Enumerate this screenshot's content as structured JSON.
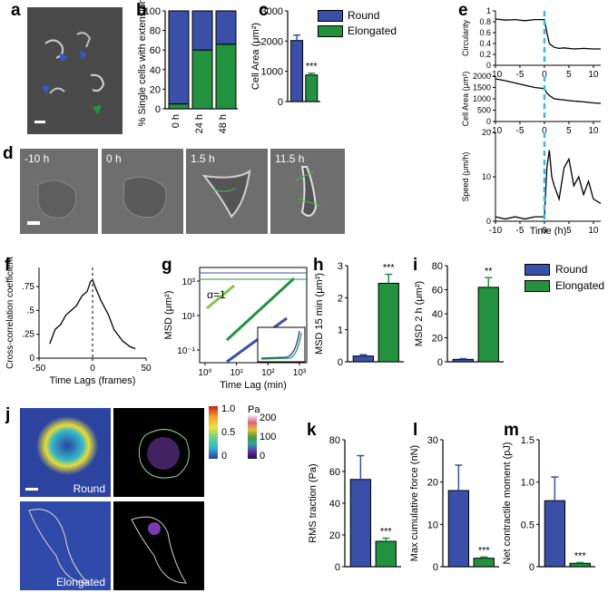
{
  "figure": {
    "panel_letters": [
      "a",
      "b",
      "c",
      "d",
      "e",
      "f",
      "g",
      "h",
      "i",
      "j",
      "k",
      "l",
      "m"
    ],
    "colors": {
      "round": "#3a4fa8",
      "elongated": "#23923f",
      "cyan": "#3cb7e6",
      "black": "#000000"
    }
  },
  "panel_d": {
    "time_labels": [
      "-10 h",
      "0 h",
      "1.5 h",
      "11.5 h"
    ]
  },
  "panel_j": {
    "row_labels": [
      "Round",
      "Elongated"
    ],
    "colorbar1_ticks": [
      "1.0",
      "0.5",
      "0"
    ],
    "colorbar2_title": "Pa",
    "colorbar2_ticks": [
      "200",
      "100",
      "0"
    ]
  },
  "legends": {
    "panel_c": [
      "Round",
      "Elongated"
    ],
    "panel_hi": [
      "Round",
      "Elongated"
    ]
  },
  "chart_data": [
    {
      "id": "b",
      "type": "bar",
      "stacked": true,
      "categories": [
        "0 h",
        "24 h",
        "48 h"
      ],
      "series": [
        {
          "name": "Elongated",
          "values": [
            5,
            60,
            66
          ]
        },
        {
          "name": "Round",
          "values": [
            95,
            40,
            34
          ]
        }
      ],
      "ylabel": "% Single cells with extensions",
      "ylim": [
        0,
        100
      ],
      "yticks": [
        "0",
        "20",
        "40",
        "60",
        "80",
        "100"
      ]
    },
    {
      "id": "c",
      "type": "bar",
      "categories": [
        "Round",
        "Elongated"
      ],
      "values": [
        2020,
        880
      ],
      "errors": [
        180,
        60
      ],
      "ylabel": "Cell Area (μm²)",
      "ylim": [
        0,
        3000
      ],
      "yticks": [
        "0",
        "1000",
        "2000",
        "3000"
      ],
      "annotation": "***"
    },
    {
      "id": "e1",
      "type": "line",
      "ylabel": "Circularity",
      "ylim": [
        0,
        1
      ],
      "yticks": [
        "0",
        "0.2",
        "0.4",
        "0.6",
        "0.8",
        "1"
      ],
      "xlim": [
        -10,
        11.5
      ],
      "xticks": [
        "-10",
        "-5",
        "0",
        "5",
        "10"
      ],
      "x": [
        -10,
        -8,
        -6,
        -4,
        -2,
        0,
        0.5,
        1,
        2,
        3,
        4,
        6,
        8,
        10,
        11.5
      ],
      "values": [
        0.85,
        0.83,
        0.84,
        0.82,
        0.84,
        0.84,
        0.6,
        0.4,
        0.33,
        0.31,
        0.32,
        0.3,
        0.31,
        0.3,
        0.3
      ]
    },
    {
      "id": "e2",
      "type": "line",
      "ylabel": "Cell Area (μm²)",
      "ylim": [
        0,
        2000
      ],
      "yticks": [
        "0",
        "500",
        "1000",
        "1500",
        "2000"
      ],
      "xlim": [
        -10,
        11.5
      ],
      "xticks": [
        "-10",
        "-5",
        "0",
        "5",
        "10"
      ],
      "x": [
        -10,
        -8,
        -6,
        -4,
        -2,
        0,
        0.5,
        1,
        2,
        4,
        6,
        8,
        10,
        11.5
      ],
      "values": [
        1880,
        1800,
        1700,
        1600,
        1500,
        1450,
        1250,
        1150,
        1000,
        950,
        900,
        870,
        820,
        800
      ]
    },
    {
      "id": "e3",
      "type": "line",
      "ylabel": "Speed (μm/h)",
      "ylim": [
        0,
        20
      ],
      "yticks": [
        "0",
        "10",
        "20"
      ],
      "xlim": [
        -10,
        11.5
      ],
      "xticks": [
        "-10",
        "-5",
        "0",
        "5",
        "10"
      ],
      "xlabel": "Time (h)",
      "x": [
        -10,
        -8,
        -6,
        -4,
        -2,
        0,
        0.5,
        1,
        1.5,
        2,
        3,
        4,
        5,
        6,
        7,
        8,
        9,
        10,
        11.5
      ],
      "values": [
        1,
        0.5,
        1,
        0.5,
        1,
        1,
        12,
        16,
        10,
        8,
        5,
        12,
        14,
        8,
        10,
        6,
        9,
        5,
        4
      ]
    },
    {
      "id": "f",
      "type": "line",
      "ylabel": "Cross-correlation coefficient",
      "xlabel": "Time Lags (frames)",
      "xlim": [
        -50,
        50
      ],
      "xticks": [
        "-50",
        "0",
        "50"
      ],
      "ylim": [
        0,
        0.95
      ],
      "yticks": [
        "0",
        ".25",
        ".5",
        ".75"
      ],
      "x": [
        -40,
        -35,
        -30,
        -25,
        -20,
        -15,
        -10,
        -5,
        -2,
        0,
        3,
        8,
        15,
        20,
        28,
        35,
        40
      ],
      "values": [
        0.15,
        0.3,
        0.35,
        0.45,
        0.5,
        0.55,
        0.65,
        0.7,
        0.8,
        0.82,
        0.73,
        0.6,
        0.45,
        0.3,
        0.18,
        0.12,
        0.1
      ]
    },
    {
      "id": "g",
      "type": "line",
      "log_axes": true,
      "ylabel": "MSD (μm²)",
      "xlabel": "Time Lag (min)",
      "xticks": [
        "10⁰",
        "10¹",
        "10²",
        "10³"
      ],
      "yticks": [
        "10⁻¹",
        "10¹",
        "10³"
      ],
      "annotation": "α=1",
      "series": [
        {
          "name": "Round",
          "values_note": "low slope"
        },
        {
          "name": "Elongated",
          "values_note": "high slope"
        }
      ]
    },
    {
      "id": "h",
      "type": "bar",
      "categories": [
        "Round",
        "Elongated"
      ],
      "values": [
        0.18,
        2.45
      ],
      "errors": [
        0.04,
        0.28
      ],
      "ylabel": "MSD 15 min (μm²)",
      "ylim": [
        0,
        3
      ],
      "yticks": [
        "0",
        "1",
        "2",
        "3"
      ],
      "annotation": "***"
    },
    {
      "id": "i",
      "type": "bar",
      "categories": [
        "Round",
        "Elongated"
      ],
      "values": [
        2,
        62
      ],
      "errors": [
        0.6,
        8
      ],
      "ylabel": "MSD 2 h (μm²)",
      "ylim": [
        0,
        80
      ],
      "yticks": [
        "0",
        "20",
        "40",
        "60",
        "80"
      ],
      "annotation": "**"
    },
    {
      "id": "k",
      "type": "bar",
      "categories": [
        "Round",
        "Elongated"
      ],
      "values": [
        55,
        16
      ],
      "errors": [
        15,
        2
      ],
      "ylabel": "RMS traction (Pa)",
      "ylim": [
        0,
        80
      ],
      "yticks": [
        "0",
        "20",
        "40",
        "60",
        "80"
      ],
      "annotation": "***"
    },
    {
      "id": "l",
      "type": "bar",
      "categories": [
        "Round",
        "Elongated"
      ],
      "values": [
        18,
        2
      ],
      "errors": [
        6,
        0.3
      ],
      "ylabel": "Max cumulative force (nN)",
      "ylim": [
        0,
        30
      ],
      "yticks": [
        "0",
        "10",
        "20",
        "30"
      ],
      "annotation": "***"
    },
    {
      "id": "m",
      "type": "bar",
      "categories": [
        "Round",
        "Elongated"
      ],
      "values": [
        0.78,
        0.04
      ],
      "errors": [
        0.28,
        0.01
      ],
      "ylabel": "Net contractile moment (pJ)",
      "ylim": [
        0,
        1.5
      ],
      "yticks": [
        "0",
        "0.5",
        "1.0",
        "1.5"
      ],
      "annotation": "***"
    }
  ]
}
